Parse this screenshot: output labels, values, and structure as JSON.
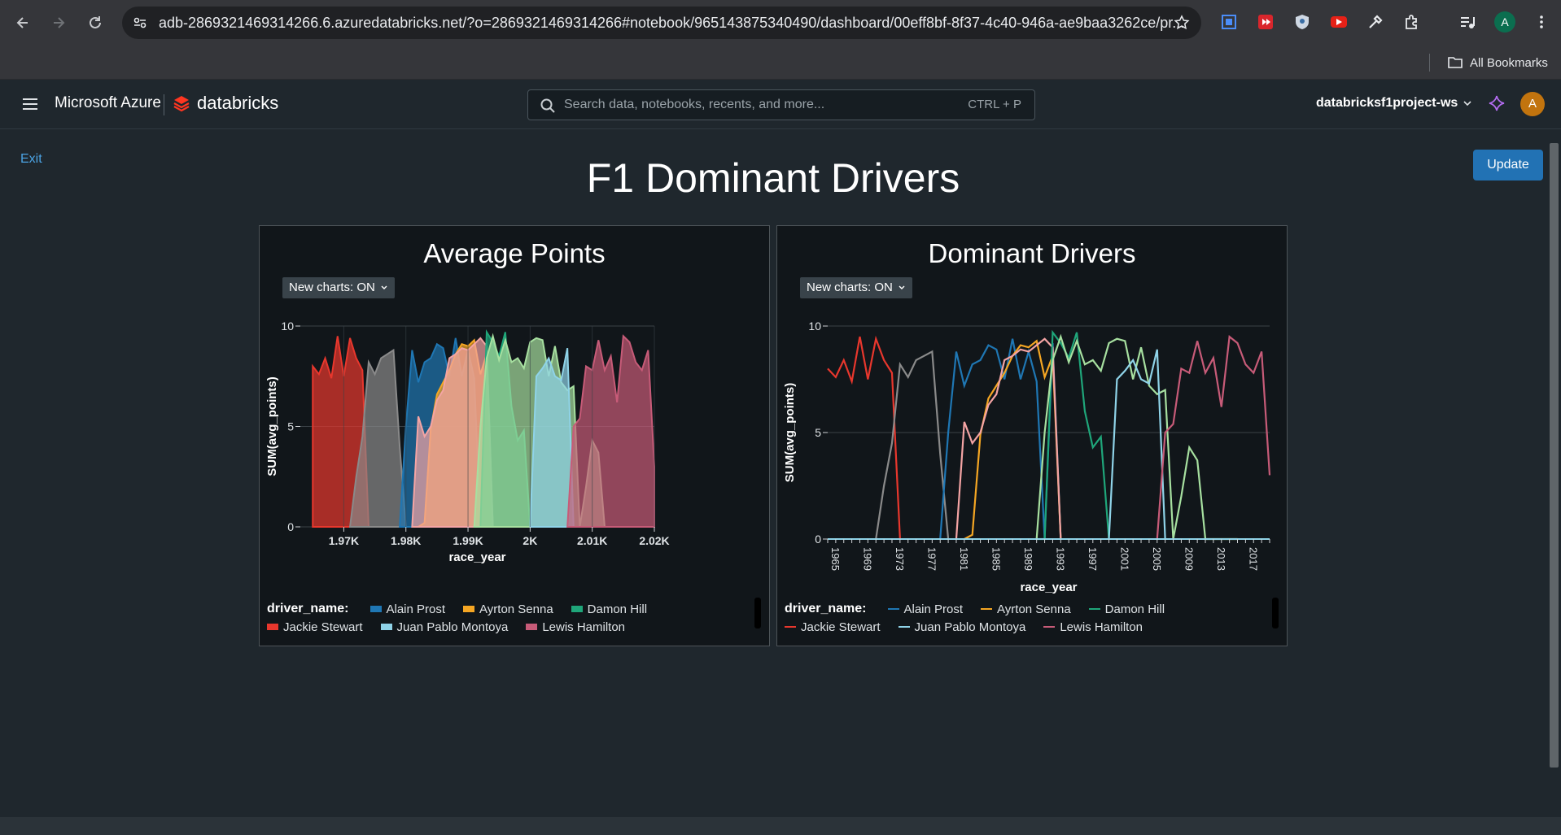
{
  "browser": {
    "url": "adb-2869321469314266.6.azuredatabricks.net/?o=2869321469314266#notebook/965143875340490/dashboard/00eff8bf-8f37-4c40-946a-ae9baa3262ce/pr...",
    "profile_initial": "A",
    "bookmarks_label": "All Bookmarks"
  },
  "header": {
    "brand_ms": "Microsoft Azure",
    "brand_db": "databricks",
    "search_placeholder": "Search data, notebooks, recents, and more...",
    "search_shortcut": "CTRL + P",
    "workspace": "databricksf1project-ws",
    "user_initial": "A"
  },
  "dashboard": {
    "exit_label": "Exit",
    "update_label": "Update",
    "title": "F1 Dominant Drivers"
  },
  "panels": [
    {
      "title": "Average Points",
      "toggle": "New charts: ON",
      "legend_title": "driver_name:",
      "xlabel": "race_year",
      "ylabel": "SUM(avg_points)",
      "x_ticks": [
        "1.97K",
        "1.98K",
        "1.99K",
        "2K",
        "2.01K",
        "2.02K"
      ],
      "y_ticks": [
        "0",
        "5",
        "10"
      ]
    },
    {
      "title": "Dominant Drivers",
      "toggle": "New charts: ON",
      "legend_title": "driver_name:",
      "xlabel": "race_year",
      "ylabel": "SUM(avg_points)",
      "x_ticks": [
        "1965",
        "1969",
        "1973",
        "1977",
        "1981",
        "1985",
        "1989",
        "1993",
        "1997",
        "2001",
        "2005",
        "2009",
        "2013",
        "2017"
      ],
      "y_ticks": [
        "0",
        "5",
        "10"
      ]
    }
  ],
  "legend_items": [
    "Alain Prost",
    "Ayrton Senna",
    "Damon Hill",
    "Jackie Stewart",
    "Juan Pablo Montoya",
    "Lewis Hamilton"
  ],
  "colors": {
    "alain_prost": "#1f77b4",
    "ayrton_senna": "#f5a623",
    "damon_hill": "#1fa67a",
    "jackie_stewart": "#e8372d",
    "juan_pablo_montoya": "#8fd3e8",
    "lewis_hamilton": "#c75b78",
    "gray_driver": "#8a8a8a",
    "pink_driver": "#f4a4a4",
    "light_green_driver": "#a7e0a0",
    "accent": "#2272b4"
  },
  "chart_data": [
    {
      "type": "area",
      "title": "Average Points",
      "xlabel": "race_year",
      "ylabel": "SUM(avg_points)",
      "xlim": [
        1963,
        2020
      ],
      "ylim": [
        0,
        10
      ],
      "series": [
        {
          "name": "Jackie Stewart",
          "x": [
            1965,
            1966,
            1967,
            1968,
            1969,
            1970,
            1971,
            1972,
            1973,
            1974
          ],
          "values": [
            8.0,
            7.6,
            8.4,
            7.4,
            9.5,
            7.5,
            9.4,
            8.4,
            7.8,
            0
          ]
        },
        {
          "name": "",
          "x": [
            1971,
            1972,
            1973,
            1974,
            1975,
            1976,
            1977,
            1978,
            1979,
            1980
          ],
          "values": [
            0,
            2.5,
            4.5,
            8.2,
            7.6,
            8.4,
            8.6,
            8.8,
            4.0,
            0
          ]
        },
        {
          "name": "Alain Prost",
          "x": [
            1979,
            1980,
            1981,
            1982,
            1983,
            1984,
            1985,
            1986,
            1987,
            1988,
            1989,
            1990,
            1991,
            1992,
            1993,
            1994
          ],
          "values": [
            0,
            5.0,
            8.8,
            7.2,
            8.2,
            8.4,
            9.1,
            8.9,
            7.5,
            9.4,
            7.5,
            8.8,
            7.4,
            0,
            9.2,
            0
          ]
        },
        {
          "name": "Ayrton Senna",
          "x": [
            1982,
            1983,
            1984,
            1985,
            1986,
            1987,
            1988,
            1989,
            1990,
            1991,
            1992,
            1993,
            1994
          ],
          "values": [
            0,
            0.2,
            4.9,
            6.6,
            7.2,
            7.8,
            8.6,
            9.1,
            9.0,
            9.3,
            7.6,
            8.6,
            0
          ]
        },
        {
          "name": "",
          "x": [
            1981,
            1982,
            1983,
            1984,
            1985,
            1986,
            1987,
            1988,
            1989,
            1990,
            1991,
            1992,
            1993,
            1994
          ],
          "values": [
            0,
            5.5,
            4.5,
            5.0,
            6.3,
            6.8,
            8.4,
            8.6,
            8.9,
            8.8,
            9.1,
            9.4,
            9.0,
            0
          ]
        },
        {
          "name": "Damon Hill",
          "x": [
            1991,
            1992,
            1993,
            1994,
            1995,
            1996,
            1997,
            1998,
            1999,
            2000
          ],
          "values": [
            0,
            0,
            9.7,
            9.2,
            8.5,
            9.7,
            6.0,
            4.3,
            4.8,
            0
          ]
        },
        {
          "name": "",
          "x": [
            1991,
            1992,
            1993,
            1994,
            1995,
            1996,
            1997,
            1998,
            1999,
            2000,
            2001,
            2002,
            2003,
            2004,
            2005,
            2006,
            2007,
            2008,
            2009,
            2010,
            2011,
            2012,
            2013,
            2014,
            2015,
            2016
          ],
          "values": [
            0,
            5.0,
            8.4,
            9.5,
            8.3,
            9.3,
            8.2,
            8.4,
            7.9,
            9.2,
            9.4,
            9.3,
            7.5,
            9.0,
            7.2,
            6.8,
            7.0,
            0,
            2.0,
            4.3,
            3.7,
            0,
            0,
            0,
            0,
            0
          ]
        },
        {
          "name": "Juan Pablo Montoya",
          "x": [
            2000,
            2001,
            2002,
            2003,
            2004,
            2005,
            2006,
            2007
          ],
          "values": [
            0,
            7.5,
            7.9,
            8.4,
            7.5,
            7.3,
            8.9,
            0
          ]
        },
        {
          "name": "Lewis Hamilton",
          "x": [
            2006,
            2007,
            2008,
            2009,
            2010,
            2011,
            2012,
            2013,
            2014,
            2015,
            2016,
            2017,
            2018,
            2019,
            2020
          ],
          "values": [
            0,
            5.0,
            5.4,
            8.0,
            7.8,
            9.3,
            7.8,
            8.5,
            6.2,
            9.5,
            9.2,
            8.2,
            7.8,
            8.8,
            3.0
          ]
        }
      ]
    },
    {
      "type": "line",
      "title": "Dominant Drivers",
      "xlabel": "race_year",
      "ylabel": "SUM(avg_points)",
      "xlim": [
        1965,
        2020
      ],
      "ylim": [
        0,
        10
      ],
      "series": [
        {
          "name": "Jackie Stewart",
          "x": [
            1965,
            1966,
            1967,
            1968,
            1969,
            1970,
            1971,
            1972,
            1973,
            1974
          ],
          "values": [
            8.0,
            7.6,
            8.4,
            7.4,
            9.5,
            7.5,
            9.4,
            8.4,
            7.8,
            0
          ]
        },
        {
          "name": "",
          "x": [
            1971,
            1972,
            1973,
            1974,
            1975,
            1976,
            1977,
            1978,
            1979,
            1980
          ],
          "values": [
            0,
            2.5,
            4.5,
            8.2,
            7.6,
            8.4,
            8.6,
            8.8,
            4.0,
            0
          ]
        },
        {
          "name": "Alain Prost",
          "x": [
            1979,
            1980,
            1981,
            1982,
            1983,
            1984,
            1985,
            1986,
            1987,
            1988,
            1989,
            1990,
            1991,
            1992,
            1993,
            1994
          ],
          "values": [
            0,
            5.0,
            8.8,
            7.2,
            8.2,
            8.4,
            9.1,
            8.9,
            7.5,
            9.4,
            7.5,
            8.8,
            7.4,
            0,
            9.2,
            0
          ]
        },
        {
          "name": "Ayrton Senna",
          "x": [
            1982,
            1983,
            1984,
            1985,
            1986,
            1987,
            1988,
            1989,
            1990,
            1991,
            1992,
            1993,
            1994
          ],
          "values": [
            0,
            0.2,
            4.9,
            6.6,
            7.2,
            7.8,
            8.6,
            9.1,
            9.0,
            9.3,
            7.6,
            8.6,
            0
          ]
        },
        {
          "name": "",
          "x": [
            1981,
            1982,
            1983,
            1984,
            1985,
            1986,
            1987,
            1988,
            1989,
            1990,
            1991,
            1992,
            1993,
            1994
          ],
          "values": [
            0,
            5.5,
            4.5,
            5.0,
            6.3,
            6.8,
            8.4,
            8.6,
            8.9,
            8.8,
            9.1,
            9.4,
            9.0,
            0
          ]
        },
        {
          "name": "Damon Hill",
          "x": [
            1991,
            1992,
            1993,
            1994,
            1995,
            1996,
            1997,
            1998,
            1999,
            2000
          ],
          "values": [
            0,
            0,
            9.7,
            9.2,
            8.5,
            9.7,
            6.0,
            4.3,
            4.8,
            0
          ]
        },
        {
          "name": "",
          "x": [
            1991,
            1992,
            1993,
            1994,
            1995,
            1996,
            1997,
            1998,
            1999,
            2000,
            2001,
            2002,
            2003,
            2004,
            2005,
            2006,
            2007,
            2008,
            2009,
            2010,
            2011,
            2012,
            2013,
            2014,
            2015,
            2016
          ],
          "values": [
            0,
            5.0,
            8.4,
            9.5,
            8.3,
            9.3,
            8.2,
            8.4,
            7.9,
            9.2,
            9.4,
            9.3,
            7.5,
            9.0,
            7.2,
            6.8,
            7.0,
            0,
            2.0,
            4.3,
            3.7,
            0,
            0,
            0,
            0,
            0
          ]
        },
        {
          "name": "Juan Pablo Montoya",
          "x": [
            2000,
            2001,
            2002,
            2003,
            2004,
            2005,
            2006,
            2007
          ],
          "values": [
            0,
            7.5,
            7.9,
            8.4,
            7.5,
            7.3,
            8.9,
            0
          ]
        },
        {
          "name": "Lewis Hamilton",
          "x": [
            2006,
            2007,
            2008,
            2009,
            2010,
            2011,
            2012,
            2013,
            2014,
            2015,
            2016,
            2017,
            2018,
            2019,
            2020
          ],
          "values": [
            0,
            5.0,
            5.4,
            8.0,
            7.8,
            9.3,
            7.8,
            8.5,
            6.2,
            9.5,
            9.2,
            8.2,
            7.8,
            8.8,
            3.0
          ]
        }
      ]
    }
  ]
}
